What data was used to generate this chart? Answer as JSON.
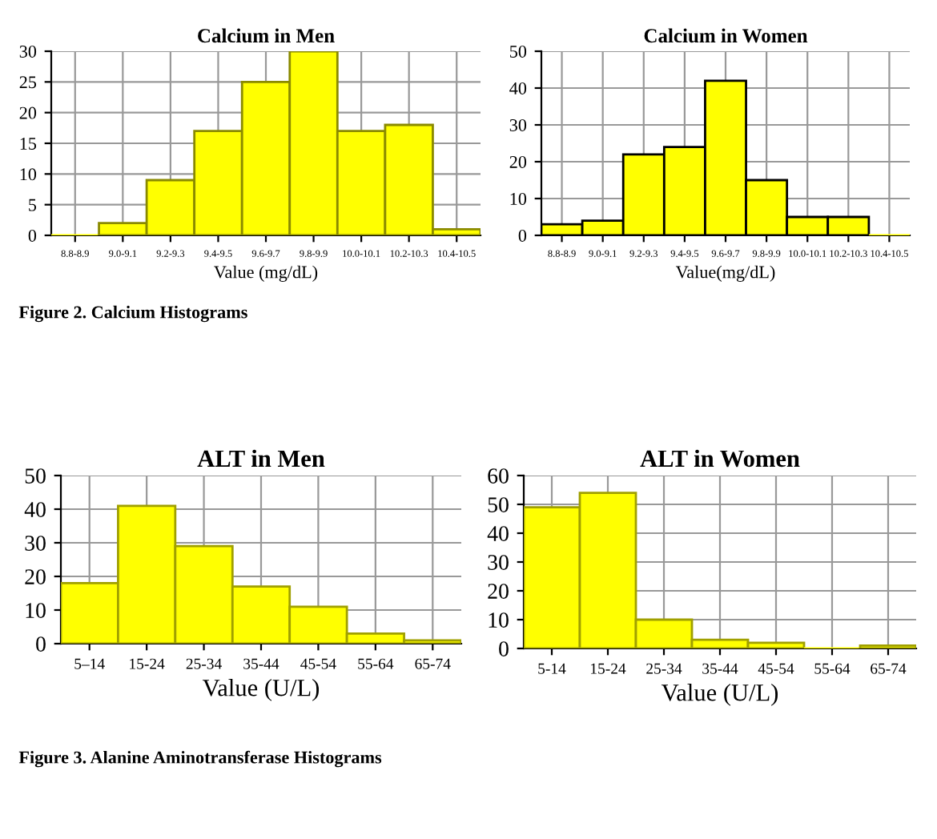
{
  "chart_data": [
    {
      "type": "bar",
      "title": "Calcium in Men",
      "xlabel": "Value (mg/dL)",
      "categories": [
        "8.8-8.9",
        "9.0-9.1",
        "9.2-9.3",
        "9.4-9.5",
        "9.6-9.7",
        "9.8-9.9",
        "10.0-10.1",
        "10.2-10.3",
        "10.4-10.5"
      ],
      "values": [
        0,
        2,
        9,
        17,
        25,
        30,
        17,
        18,
        1
      ],
      "color": "#ffff00",
      "ylim": [
        0,
        30
      ],
      "yticks": [
        0,
        5,
        10,
        15,
        20,
        25,
        30
      ],
      "grid": true,
      "annotations": [
        "Figure 2. Calcium Histograms"
      ]
    },
    {
      "type": "bar",
      "title": "Calcium in Women",
      "xlabel": "Value(mg/dL)",
      "categories": [
        "8.8-8.9",
        "9.0-9.1",
        "9.2-9.3",
        "9.4-9.5",
        "9.6-9.7",
        "9.8-9.9",
        "10.0-10.1",
        "10.2-10.3",
        "10.4-10.5"
      ],
      "values": [
        3,
        4,
        22,
        24,
        42,
        15,
        5,
        5,
        0
      ],
      "color": "#ffff00",
      "ylim": [
        0,
        50
      ],
      "yticks": [
        0,
        10,
        20,
        30,
        40,
        50
      ],
      "grid": true
    },
    {
      "type": "bar",
      "title": "ALT in Men",
      "xlabel": "Value (U/L)",
      "categories": [
        "5–14",
        "15-24",
        "25-34",
        "35-44",
        "45-54",
        "55-64",
        "65-74"
      ],
      "values": [
        18,
        41,
        29,
        17,
        11,
        3,
        1
      ],
      "color": "#ffff00",
      "ylim": [
        0,
        50
      ],
      "yticks": [
        0,
        10,
        20,
        30,
        40,
        50
      ],
      "grid": true,
      "annotations": [
        "Figure 3. Alanine Aminotransferase Histograms"
      ]
    },
    {
      "type": "bar",
      "title": "ALT in Women",
      "xlabel": "Value (U/L)",
      "categories": [
        "5-14",
        "15-24",
        "25-34",
        "35-44",
        "45-54",
        "55-64",
        "65-74"
      ],
      "values": [
        49,
        54,
        10,
        3,
        2,
        0,
        1
      ],
      "color": "#ffff00",
      "ylim": [
        0,
        60
      ],
      "yticks": [
        0,
        10,
        20,
        30,
        40,
        50,
        60
      ],
      "grid": true
    }
  ]
}
